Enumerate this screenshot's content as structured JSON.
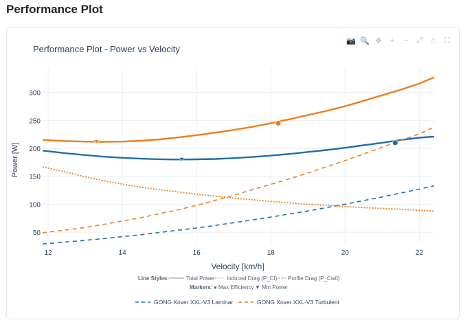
{
  "page": {
    "title": "Performance Plot"
  },
  "modebar": [
    {
      "name": "camera-icon",
      "glyph": "📷"
    },
    {
      "name": "zoom-icon",
      "glyph": "🔍"
    },
    {
      "name": "pan-icon",
      "glyph": "✥"
    },
    {
      "name": "zoom-in-icon",
      "glyph": "+"
    },
    {
      "name": "zoom-out-icon",
      "glyph": "−"
    },
    {
      "name": "autoscale-icon",
      "glyph": "⤢"
    },
    {
      "name": "reset-axes-icon",
      "glyph": "⌂"
    },
    {
      "name": "fullscreen-icon",
      "glyph": "⛶"
    }
  ],
  "chart_data": {
    "type": "line",
    "title": "Performance Plot - Power vs Velocity",
    "xlabel": "Velocity [km/h]",
    "ylabel": "Power [W]",
    "xlim": [
      11.85,
      22.4
    ],
    "ylim": [
      28,
      345
    ],
    "xticks": [
      12,
      14,
      16,
      18,
      20,
      22
    ],
    "yticks": [
      50,
      100,
      150,
      200,
      250,
      300
    ],
    "grid": true,
    "colors": {
      "laminar": "#1f6db0",
      "turbulent": "#f07d1a",
      "axis_text": "#2a3f5f",
      "grid": "#ebeef3"
    },
    "x": [
      11.85,
      12.5,
      13,
      13.5,
      14,
      14.5,
      15,
      15.5,
      16,
      16.5,
      17,
      17.5,
      18,
      18.5,
      19,
      19.5,
      20,
      20.5,
      21,
      21.5,
      22,
      22.4
    ],
    "series": [
      {
        "name": "Laminar Total",
        "group": "laminar",
        "style": "solid",
        "values": [
          196,
          191,
          188,
          185,
          183,
          181.5,
          180.5,
          180,
          180.3,
          181,
          182.5,
          184.5,
          187,
          190,
          193.5,
          197,
          201,
          205.5,
          210,
          215,
          219,
          221
        ]
      },
      {
        "name": "Laminar Profile Drag",
        "group": "laminar",
        "style": "dashed",
        "values": [
          29,
          32.5,
          35.5,
          38.5,
          42,
          45.5,
          49.5,
          53.5,
          57.5,
          62,
          67,
          72,
          77,
          82.5,
          88,
          94,
          100,
          106.5,
          113,
          120,
          127,
          133
        ]
      },
      {
        "name": "Turbulent Total",
        "group": "turbulent",
        "style": "solid",
        "values": [
          215,
          213,
          212,
          211.7,
          212,
          213.5,
          216,
          219.5,
          223.5,
          228,
          233,
          238.5,
          245,
          252,
          259.5,
          267,
          275.5,
          285,
          295,
          305,
          316,
          327
        ]
      },
      {
        "name": "Turbulent Profile Drag",
        "group": "turbulent",
        "style": "dashed",
        "values": [
          49,
          54,
          58.5,
          64,
          70,
          76,
          83,
          90,
          98,
          107,
          116,
          126,
          135.5,
          145.5,
          156,
          167,
          178,
          190,
          202,
          214,
          226,
          238
        ]
      },
      {
        "name": "Induced Drag",
        "group": "turbulent",
        "style": "dotted",
        "values": [
          167,
          157,
          149,
          142,
          136,
          130.5,
          126,
          122,
          118,
          114.5,
          111,
          108,
          105,
          102.5,
          100,
          98,
          96,
          94,
          92.5,
          91,
          89,
          88
        ]
      }
    ],
    "markers": [
      {
        "type": "min-power",
        "group": "turbulent",
        "x": 13.3,
        "y": 211.7
      },
      {
        "type": "max-efficiency",
        "group": "turbulent",
        "x": 18.2,
        "y": 245
      },
      {
        "type": "min-power",
        "group": "laminar",
        "x": 15.6,
        "y": 180
      },
      {
        "type": "max-efficiency",
        "group": "laminar",
        "x": 21.35,
        "y": 210
      }
    ],
    "annotation": {
      "line_styles_label": "Line Styles:",
      "total_power": "Total Power",
      "induced_drag": "Induced Drag (P_CI)",
      "profile_drag": "Profile Drag (P_Cw0)",
      "markers_label": "Markers:",
      "max_efficiency": "● Max Efficiency",
      "min_power": "▼ Min Power"
    },
    "legend": [
      {
        "group": "laminar",
        "label": "GONG Xover XXL-V3 Laminar"
      },
      {
        "group": "turbulent",
        "label": "GONG Xover XXL-V3 Turbulent"
      }
    ]
  }
}
